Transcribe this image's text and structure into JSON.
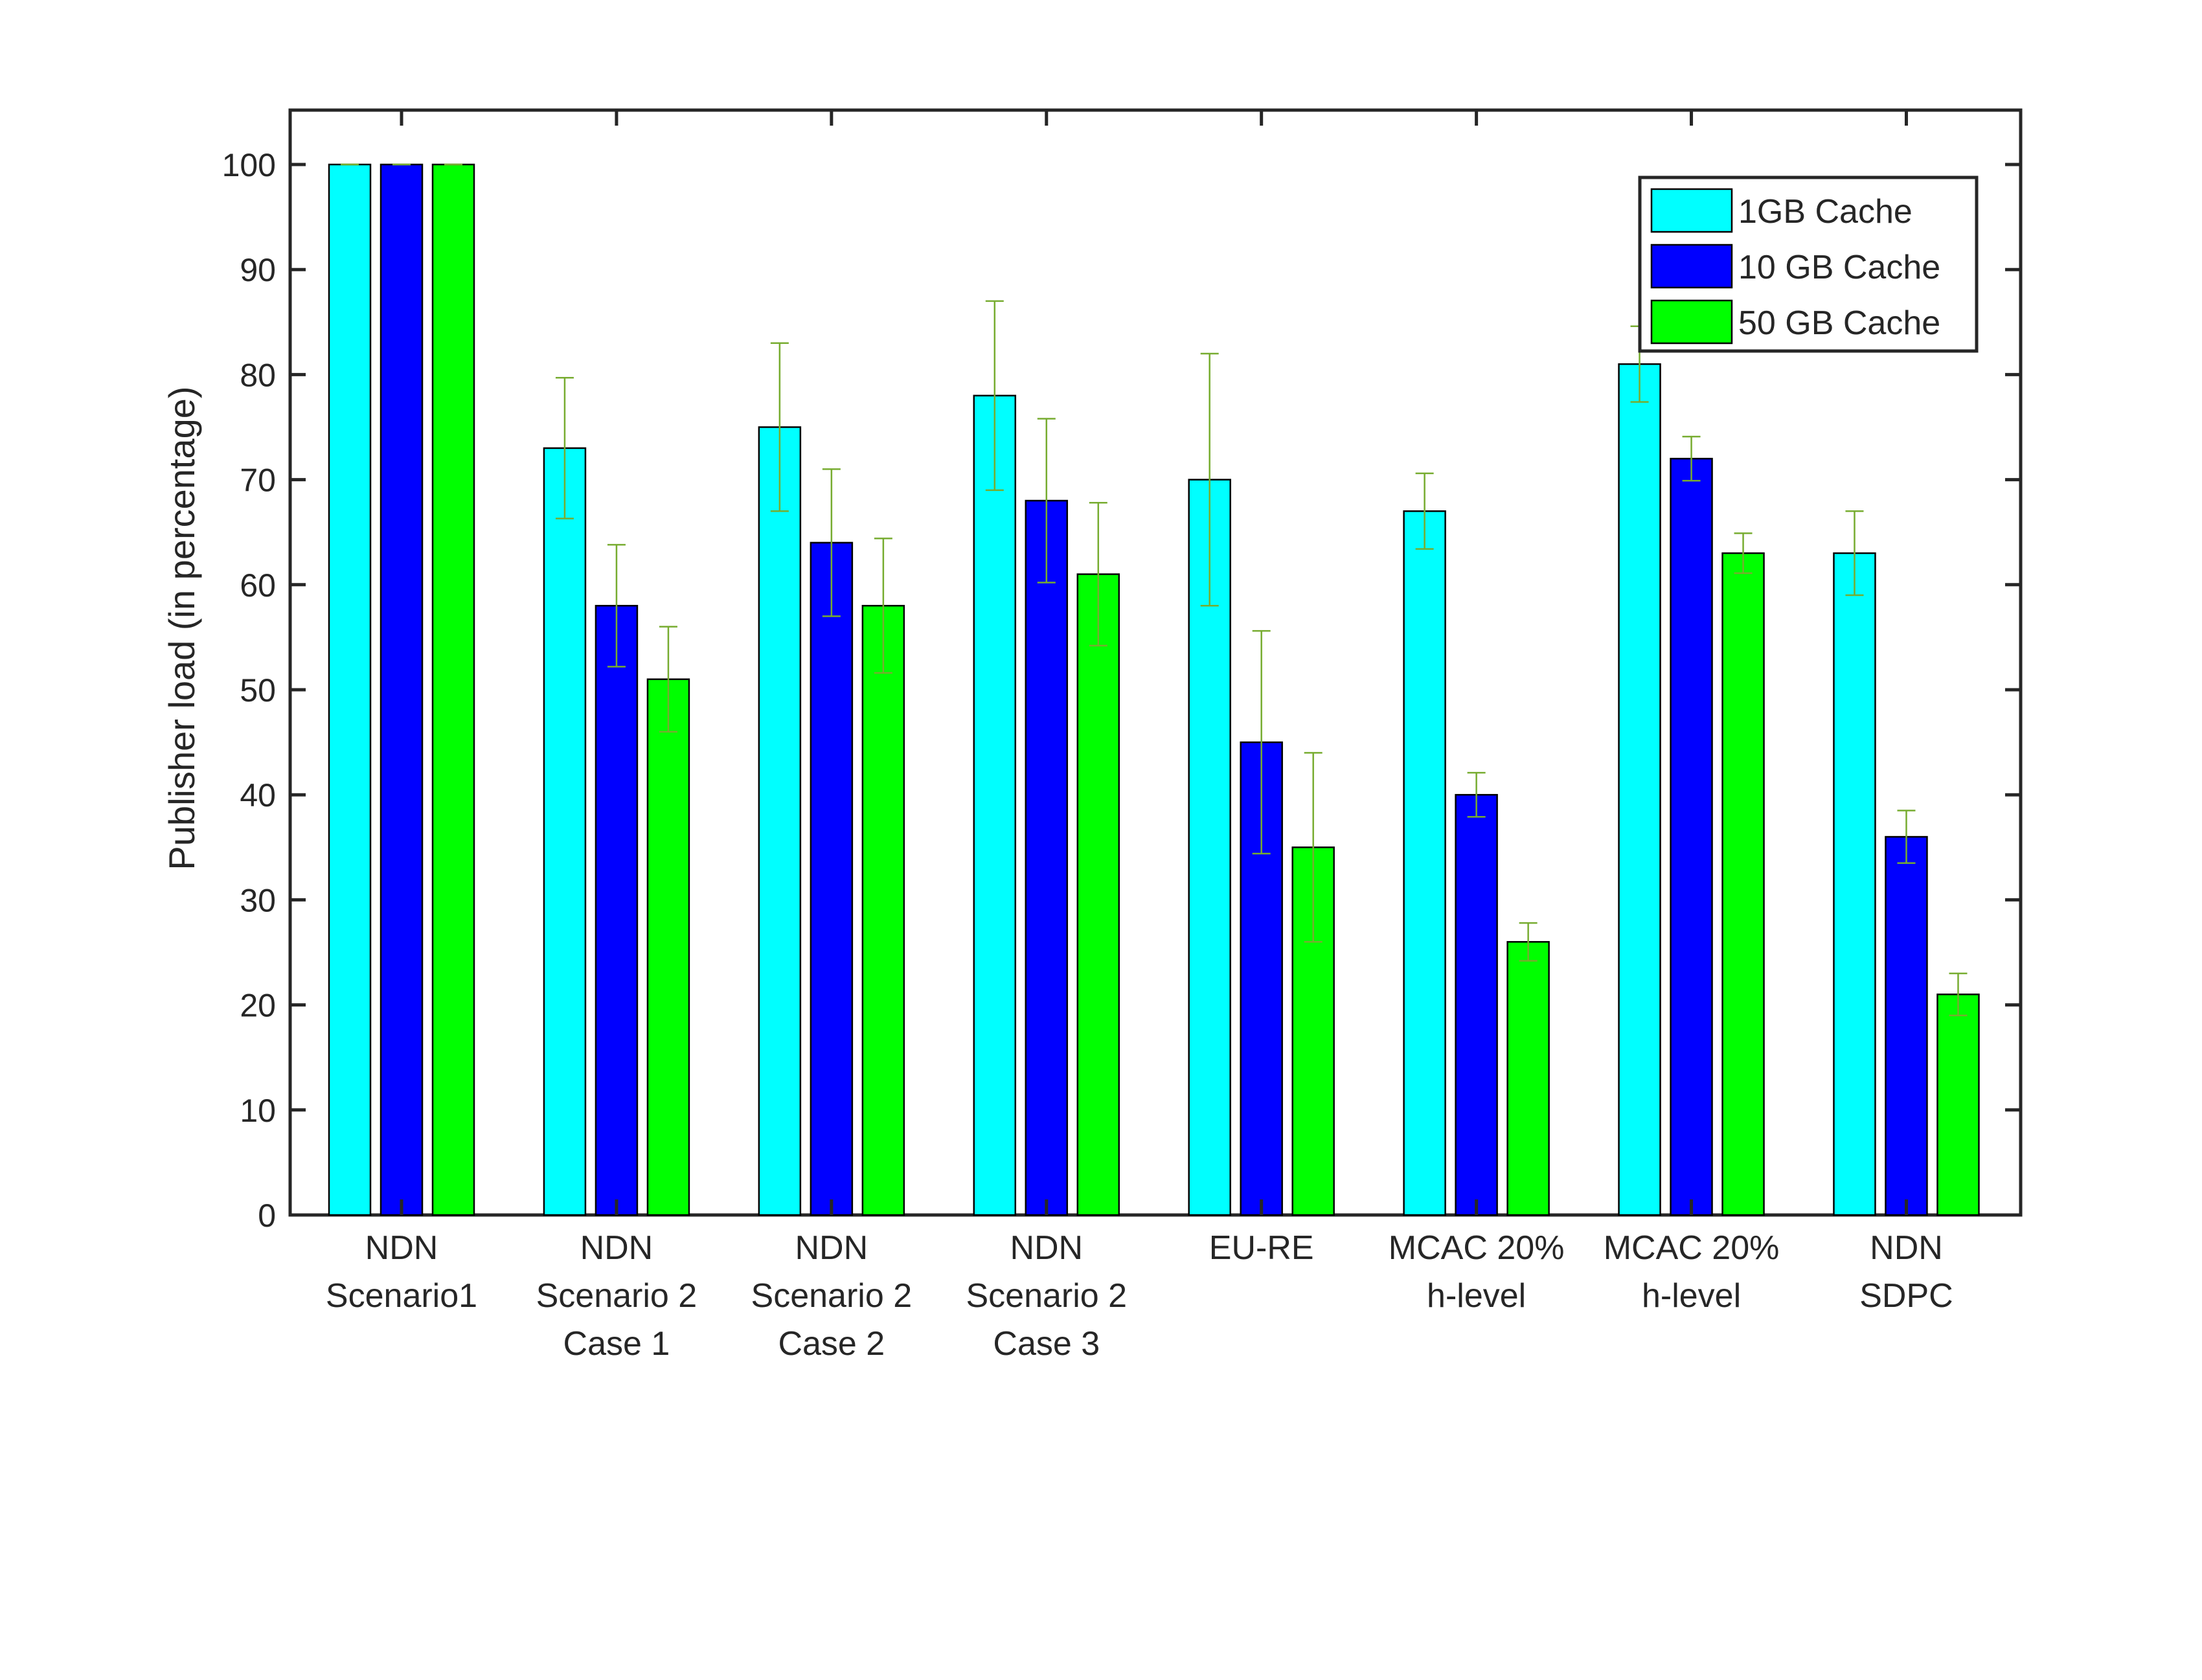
{
  "chart_data": {
    "type": "bar",
    "title": "",
    "xlabel": "",
    "ylabel": "Publisher load (in percentage)",
    "ylim": [
      0,
      105
    ],
    "yticks": [
      0,
      10,
      20,
      30,
      40,
      50,
      60,
      70,
      80,
      90,
      100
    ],
    "grid": false,
    "legend_position": "top-right",
    "categories": [
      [
        "NDN",
        "Scenario1"
      ],
      [
        "NDN",
        "Scenario 2",
        "Case 1"
      ],
      [
        "NDN",
        "Scenario 2",
        "Case 2"
      ],
      [
        "NDN",
        "Scenario 2",
        "Case 3"
      ],
      [
        "EU-RE"
      ],
      [
        "MCAC 20%",
        "h-level"
      ],
      [
        "MCAC 20%",
        "h-level"
      ],
      [
        "NDN",
        "SDPC"
      ]
    ],
    "series": [
      {
        "name": "1GB Cache",
        "color": "#00FFFF",
        "values": [
          100,
          73,
          75,
          78,
          70,
          67,
          81,
          63
        ],
        "errors": [
          0,
          6.7,
          8,
          9,
          12,
          3.6,
          3.6,
          4
        ]
      },
      {
        "name": "10 GB Cache",
        "color": "#0000FF",
        "values": [
          100,
          58,
          64,
          68,
          45,
          40,
          72,
          36
        ],
        "errors": [
          0,
          5.8,
          7,
          7.8,
          10.6,
          2.1,
          2.1,
          2.5
        ]
      },
      {
        "name": "50 GB Cache",
        "color": "#00FF00",
        "values": [
          100,
          51,
          58,
          61,
          35,
          26,
          63,
          21
        ],
        "errors": [
          0,
          5,
          6.4,
          6.8,
          9,
          1.8,
          1.9,
          2
        ]
      }
    ],
    "errorbar_color": "#77AC30"
  }
}
